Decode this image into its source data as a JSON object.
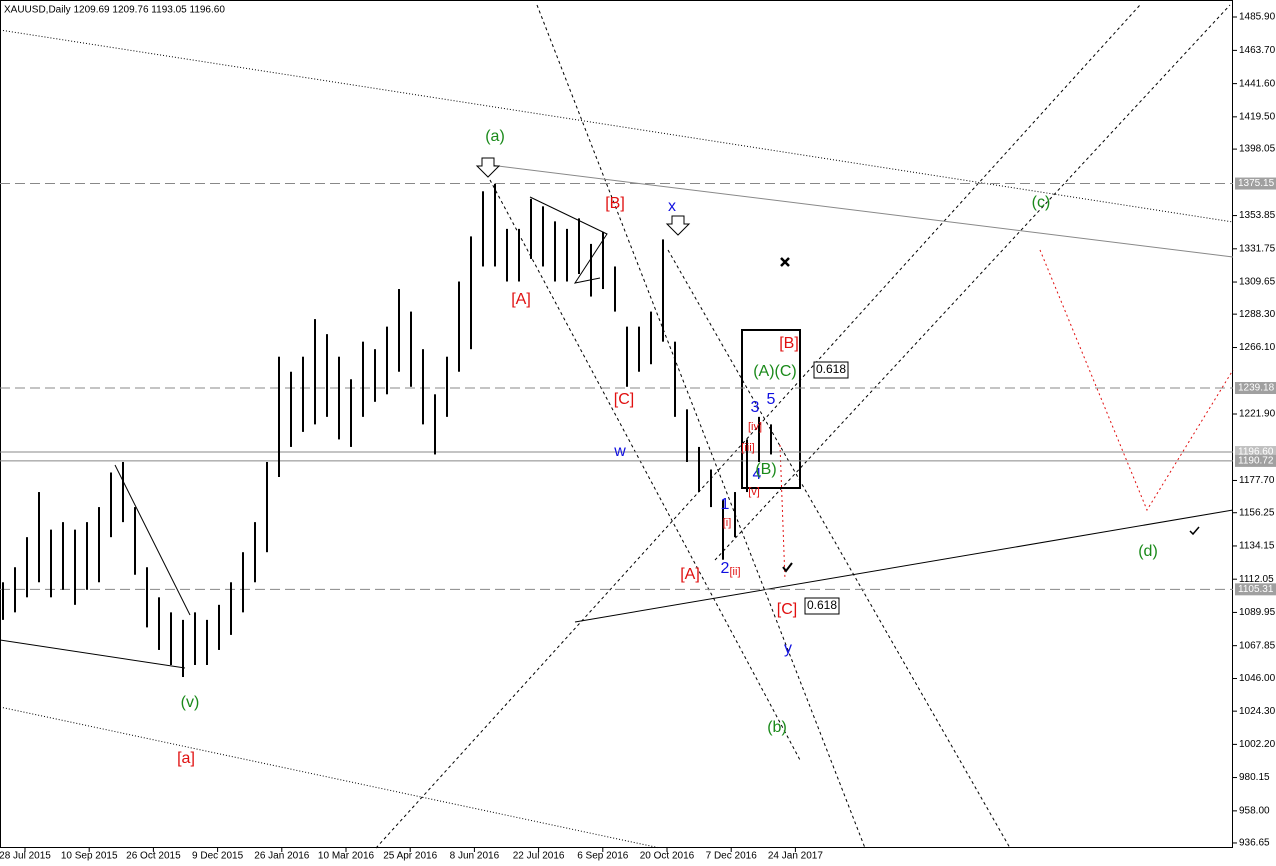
{
  "chart_data": {
    "type": "range-bar",
    "header": "XAUUSD,Daily  1209.69 1209.76 1193.05 1196.60",
    "color": "#000000",
    "ylim": [
      933.3,
      1497.2
    ],
    "yticks": [
      {
        "value": 1485.9,
        "label": "1485.90"
      },
      {
        "value": 1463.7,
        "label": "1463.70"
      },
      {
        "value": 1441.6,
        "label": "1441.60"
      },
      {
        "value": 1419.5,
        "label": "1419.50"
      },
      {
        "value": 1398.05,
        "label": "1398.05"
      },
      {
        "value": 1353.85,
        "label": "1353.85"
      },
      {
        "value": 1331.75,
        "label": "1331.75"
      },
      {
        "value": 1309.65,
        "label": "1309.65"
      },
      {
        "value": 1288.3,
        "label": "1288.30"
      },
      {
        "value": 1266.1,
        "label": "1266.10"
      },
      {
        "value": 1221.9,
        "label": "1221.90"
      },
      {
        "value": 1177.7,
        "label": "1177.70"
      },
      {
        "value": 1156.25,
        "label": "1156.25"
      },
      {
        "value": 1134.15,
        "label": "1134.15"
      },
      {
        "value": 1112.05,
        "label": "1112.05"
      },
      {
        "value": 1089.95,
        "label": "1089.95"
      },
      {
        "value": 1067.85,
        "label": "1067.85"
      },
      {
        "value": 1046.0,
        "label": "1046.00"
      },
      {
        "value": 1024.3,
        "label": "1024.30"
      },
      {
        "value": 1002.2,
        "label": "1002.20"
      },
      {
        "value": 980.15,
        "label": "980.15"
      },
      {
        "value": 958.0,
        "label": "958.00"
      },
      {
        "value": 936.65,
        "label": "936.65"
      }
    ],
    "levels": [
      {
        "value": 1375.15,
        "label": "1375.15"
      },
      {
        "value": 1239.18,
        "label": "1239.18"
      },
      {
        "value": 1196.6,
        "label": "1196.60"
      },
      {
        "value": 1190.72,
        "label": "1190.72"
      },
      {
        "value": 1105.31,
        "label": "1105.31"
      }
    ],
    "x_labels": [
      "28 Jul 2015",
      "10 Sep 2015",
      "26 Oct 2015",
      "9 Dec 2015",
      "26 Jan 2016",
      "10 Mar 2016",
      "25 Apr 2016",
      "8 Jun 2016",
      "22 Jul 2016",
      "6 Sep 2016",
      "20 Oct 2016",
      "7 Dec 2016",
      "24 Jan 2017"
    ],
    "high": [
      1110,
      1120,
      1140,
      1170,
      1145,
      1150,
      1145,
      1150,
      1160,
      1183,
      1190,
      1160,
      1120,
      1100,
      1090,
      1085,
      1090,
      1085,
      1095,
      1110,
      1130,
      1150,
      1190,
      1260,
      1250,
      1260,
      1285,
      1275,
      1260,
      1245,
      1270,
      1265,
      1280,
      1305,
      1290,
      1265,
      1235,
      1260,
      1310,
      1340,
      1370,
      1375,
      1345,
      1345,
      1365,
      1360,
      1350,
      1345,
      1352,
      1335,
      1343,
      1320,
      1280,
      1280,
      1290,
      1338,
      1270,
      1225,
      1200,
      1185,
      1165,
      1170,
      1205,
      1220,
      1215
    ],
    "low": [
      1085,
      1090,
      1100,
      1110,
      1100,
      1105,
      1095,
      1105,
      1110,
      1140,
      1150,
      1115,
      1080,
      1065,
      1055,
      1047,
      1055,
      1055,
      1065,
      1075,
      1090,
      1110,
      1130,
      1180,
      1200,
      1210,
      1215,
      1220,
      1205,
      1200,
      1220,
      1230,
      1235,
      1250,
      1240,
      1215,
      1195,
      1220,
      1250,
      1265,
      1320,
      1320,
      1310,
      1310,
      1325,
      1320,
      1310,
      1310,
      1315,
      1300,
      1305,
      1290,
      1240,
      1250,
      1255,
      1270,
      1220,
      1190,
      1170,
      1160,
      1125,
      1140,
      1170,
      1190,
      1195
    ],
    "annotations": [
      {
        "text": "(a)",
        "color": "#1a8a1a"
      },
      {
        "text": "[A]",
        "color": "#e01010"
      },
      {
        "text": "[B]",
        "color": "#e01010"
      },
      {
        "text": "x",
        "color": "#1010e0"
      },
      {
        "text": "[C]",
        "color": "#e01010"
      },
      {
        "text": "w",
        "color": "#1010e0"
      },
      {
        "text": "[A]",
        "color": "#e01010"
      },
      {
        "text": "1",
        "color": "#1010e0"
      },
      {
        "text": "[i]",
        "color": "#e01010"
      },
      {
        "text": "2",
        "color": "#1010e0"
      },
      {
        "text": "[ii]",
        "color": "#e01010"
      },
      {
        "text": "[iii]",
        "color": "#e01010"
      },
      {
        "text": "[iv]",
        "color": "#e01010"
      },
      {
        "text": "3",
        "color": "#1010e0"
      },
      {
        "text": "5",
        "color": "#1010e0"
      },
      {
        "text": "4",
        "color": "#1010e0"
      },
      {
        "text": "(B)",
        "color": "#1a8a1a"
      },
      {
        "text": "[v]",
        "color": "#e01010"
      },
      {
        "text": "(A)(C)",
        "color": "#1a8a1a"
      },
      {
        "text": "[B]",
        "color": "#e01010"
      },
      {
        "text": "0.618",
        "color": "#000000"
      },
      {
        "text": "[C]",
        "color": "#e01010"
      },
      {
        "text": "0.618",
        "color": "#000000"
      },
      {
        "text": "y",
        "color": "#1010e0"
      },
      {
        "text": "(b)",
        "color": "#1a8a1a"
      },
      {
        "text": "(c)",
        "color": "#1a8a1a"
      },
      {
        "text": "(d)",
        "color": "#1a8a1a"
      },
      {
        "text": "(v)",
        "color": "#1a8a1a"
      },
      {
        "text": "[a]",
        "color": "#e01010"
      }
    ]
  }
}
